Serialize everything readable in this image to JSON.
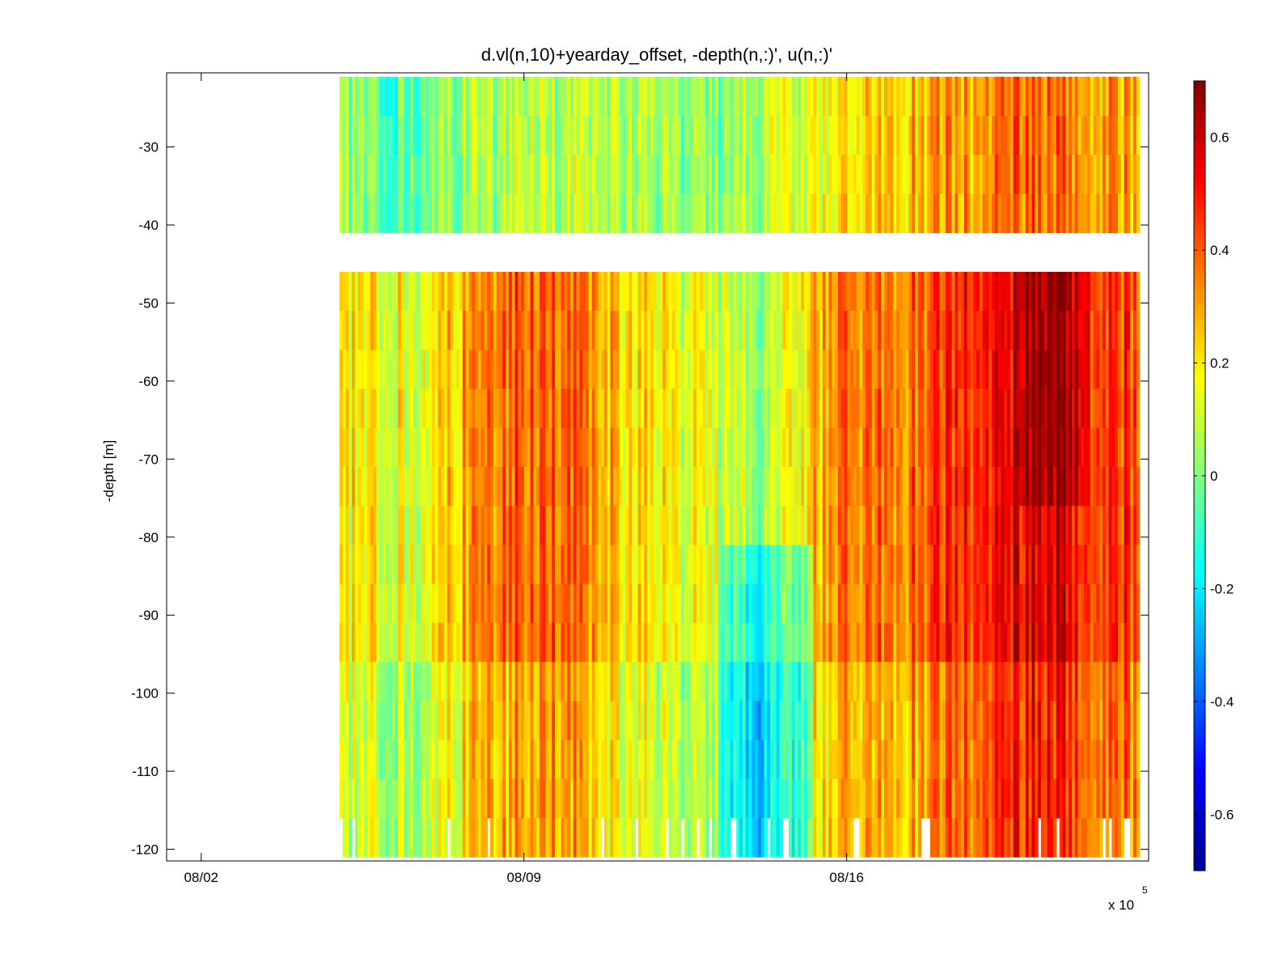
{
  "chart_data": {
    "type": "heatmap",
    "title": "d.vl(n,10)+yearday_offset, -depth(n,:)', u(n,:)'",
    "xlabel": "",
    "ylabel": "-depth [m]",
    "x_exponent_label": "x 10",
    "x_exponent_power": "5",
    "xlim": [
      0.5,
      21.8
    ],
    "ylim": [
      -121.5,
      -20.5
    ],
    "xticks": [
      {
        "value": 1.25,
        "label": "08/02"
      },
      {
        "value": 8.25,
        "label": "08/09"
      },
      {
        "value": 15.25,
        "label": "08/16"
      }
    ],
    "yticks": [
      -30,
      -40,
      -50,
      -60,
      -70,
      -80,
      -90,
      -100,
      -110,
      -120
    ],
    "colorbar": {
      "clim": [
        -0.7,
        0.7
      ],
      "ticks": [
        0.6,
        0.4,
        0.2,
        0,
        -0.2,
        -0.4,
        -0.6
      ],
      "colormap": "jet"
    },
    "data_extent": {
      "x_start": 4.25,
      "x_end": 21.6
    },
    "depth_bins": [
      -21,
      -26,
      -31,
      -36,
      -41,
      -46,
      -51,
      -56,
      -61,
      -66,
      -71,
      -76,
      -81,
      -86,
      -91,
      -96,
      -101,
      -106,
      -111,
      -116,
      -121
    ],
    "missing_depth_gap": [
      -41,
      -46
    ],
    "u_anomaly_description_profiles": {
      "upper_layer": [
        {
          "x": 4.3,
          "u": 0.05
        },
        {
          "x": 5.5,
          "u": -0.05
        },
        {
          "x": 6.5,
          "u": 0.02
        },
        {
          "x": 8.5,
          "u": 0.12
        },
        {
          "x": 10.5,
          "u": 0.06
        },
        {
          "x": 12.5,
          "u": -0.02
        },
        {
          "x": 14.5,
          "u": 0.15
        },
        {
          "x": 16.0,
          "u": 0.25
        },
        {
          "x": 17.5,
          "u": 0.3
        },
        {
          "x": 19.0,
          "u": 0.4
        },
        {
          "x": 20.5,
          "u": 0.35
        },
        {
          "x": 21.5,
          "u": 0.3
        }
      ],
      "lower_layer": [
        {
          "x": 4.3,
          "u": 0.2
        },
        {
          "x": 6.0,
          "u": 0.15
        },
        {
          "x": 7.6,
          "u": 0.38
        },
        {
          "x": 9.1,
          "u": 0.42
        },
        {
          "x": 10.5,
          "u": 0.22
        },
        {
          "x": 12.0,
          "u": 0.12
        },
        {
          "x": 13.5,
          "u": 0.02
        },
        {
          "x": 15.0,
          "u": 0.35
        },
        {
          "x": 16.8,
          "u": 0.38
        },
        {
          "x": 18.0,
          "u": 0.5
        },
        {
          "x": 19.5,
          "u": 0.6
        },
        {
          "x": 21.0,
          "u": 0.45
        }
      ]
    }
  }
}
